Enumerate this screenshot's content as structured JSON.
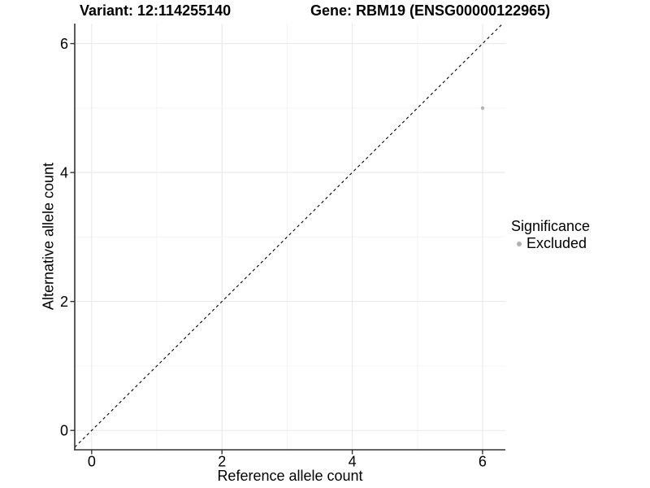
{
  "chart_data": {
    "type": "scatter",
    "title_left": "Variant: 12:114255140",
    "title_right": "Gene: RBM19 (ENSG00000122965)",
    "xlabel": "Reference allele count",
    "ylabel": "Alternative allele count",
    "xlim": [
      -0.26,
      6.35
    ],
    "ylim": [
      -0.3,
      6.31
    ],
    "x_ticks": [
      0,
      2,
      4,
      6
    ],
    "y_ticks": [
      0,
      2,
      4,
      6
    ],
    "x_minor_ticks": [
      1,
      3,
      5
    ],
    "y_minor_ticks": [
      1,
      3,
      5
    ],
    "grid": "major+minor",
    "reference_line": {
      "type": "identity",
      "style": "dashed",
      "color": "#000000"
    },
    "series": [
      {
        "name": "Excluded",
        "color": "#b0b0b0",
        "points": [
          [
            6,
            5
          ]
        ]
      }
    ],
    "legend": {
      "title": "Significance",
      "position": "right",
      "items": [
        {
          "label": "Excluded",
          "color": "#b0b0b0",
          "marker": "circle"
        }
      ]
    }
  },
  "colors": {
    "background": "#ffffff",
    "grid_major": "#e8e8e8",
    "grid_minor": "#f4f4f4",
    "axis": "#333333",
    "text": "#000000"
  }
}
